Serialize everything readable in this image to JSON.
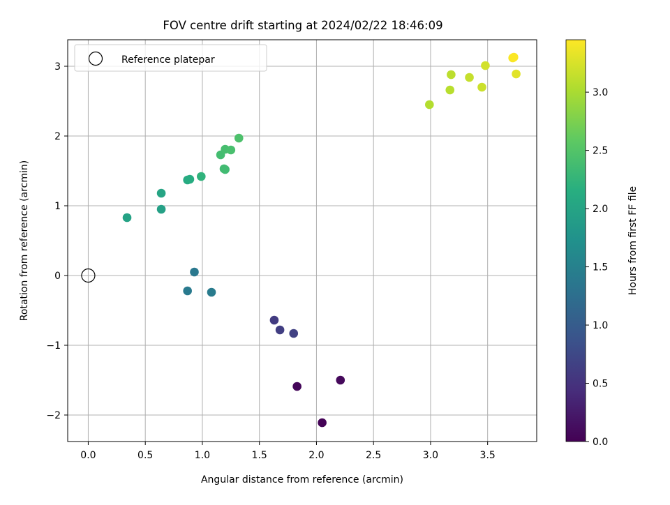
{
  "chart_data": {
    "type": "scatter",
    "title": "FOV centre drift starting at 2024/02/22 18:46:09",
    "xlabel": "Angular distance from reference (arcmin)",
    "ylabel": "Rotation from reference (arcmin)",
    "xlim": [
      -0.18,
      3.93
    ],
    "ylim": [
      -2.38,
      3.38
    ],
    "x_ticks": [
      0.0,
      0.5,
      1.0,
      1.5,
      2.0,
      2.5,
      3.0,
      3.5
    ],
    "x_tick_labels": [
      "0.0",
      "0.5",
      "1.0",
      "1.5",
      "2.0",
      "2.5",
      "3.0",
      "3.5"
    ],
    "y_ticks": [
      -2,
      -1,
      0,
      1,
      2,
      3
    ],
    "y_tick_labels": [
      "−2",
      "−1",
      "0",
      "1",
      "2",
      "3"
    ],
    "grid": true,
    "legend": {
      "position": "upper-left",
      "entries": [
        "Reference platepar"
      ]
    },
    "reference_point": {
      "x": 0.0,
      "y": 0.0
    },
    "colorbar": {
      "label": "Hours from first FF file",
      "range": [
        0.0,
        3.45
      ],
      "ticks": [
        0.0,
        0.5,
        1.0,
        1.5,
        2.0,
        2.5,
        3.0
      ],
      "tick_labels": [
        "0.0",
        "0.5",
        "1.0",
        "1.5",
        "2.0",
        "2.5",
        "3.0"
      ],
      "colormap": "viridis"
    },
    "points": [
      {
        "x": 2.05,
        "y": -2.11,
        "hours": 0.02
      },
      {
        "x": 1.83,
        "y": -1.59,
        "hours": 0.05
      },
      {
        "x": 2.21,
        "y": -1.5,
        "hours": 0.08
      },
      {
        "x": 1.63,
        "y": -0.64,
        "hours": 0.6
      },
      {
        "x": 1.68,
        "y": -0.78,
        "hours": 0.63
      },
      {
        "x": 1.8,
        "y": -0.83,
        "hours": 0.66
      },
      {
        "x": 0.93,
        "y": 0.05,
        "hours": 1.38
      },
      {
        "x": 0.87,
        "y": -0.22,
        "hours": 1.4
      },
      {
        "x": 1.08,
        "y": -0.24,
        "hours": 1.42
      },
      {
        "x": 0.34,
        "y": 0.83,
        "hours": 1.98
      },
      {
        "x": 0.64,
        "y": 0.95,
        "hours": 1.95
      },
      {
        "x": 0.64,
        "y": 1.18,
        "hours": 2.01
      },
      {
        "x": 0.87,
        "y": 1.37,
        "hours": 2.1
      },
      {
        "x": 0.89,
        "y": 1.38,
        "hours": 2.12
      },
      {
        "x": 0.99,
        "y": 1.42,
        "hours": 2.22
      },
      {
        "x": 1.2,
        "y": 1.52,
        "hours": 2.35
      },
      {
        "x": 1.19,
        "y": 1.53,
        "hours": 2.36
      },
      {
        "x": 1.16,
        "y": 1.73,
        "hours": 2.38
      },
      {
        "x": 1.2,
        "y": 1.81,
        "hours": 2.4
      },
      {
        "x": 1.25,
        "y": 1.8,
        "hours": 2.42
      },
      {
        "x": 1.32,
        "y": 1.97,
        "hours": 2.45
      },
      {
        "x": 2.99,
        "y": 2.45,
        "hours": 3.05
      },
      {
        "x": 3.17,
        "y": 2.66,
        "hours": 3.08
      },
      {
        "x": 3.18,
        "y": 2.88,
        "hours": 3.1
      },
      {
        "x": 3.34,
        "y": 2.84,
        "hours": 3.15
      },
      {
        "x": 3.45,
        "y": 2.7,
        "hours": 3.18
      },
      {
        "x": 3.48,
        "y": 3.01,
        "hours": 3.22
      },
      {
        "x": 3.75,
        "y": 2.89,
        "hours": 3.3
      },
      {
        "x": 3.72,
        "y": 3.12,
        "hours": 3.42
      },
      {
        "x": 3.73,
        "y": 3.13,
        "hours": 3.44
      }
    ]
  }
}
